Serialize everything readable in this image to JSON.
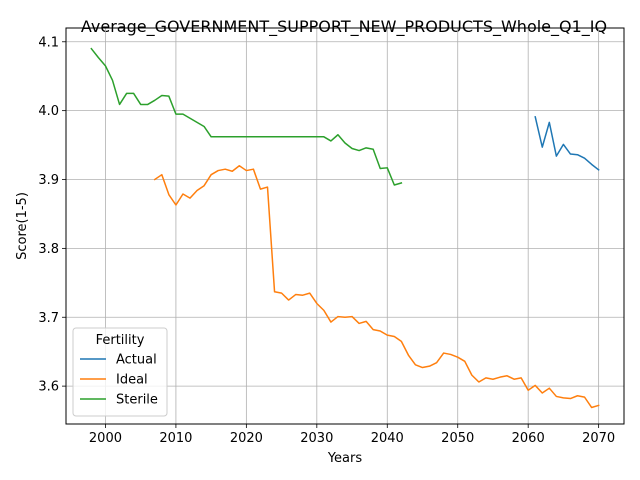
{
  "chart_data": {
    "type": "line",
    "title": "Average_GOVERNMENT_SUPPORT_NEW_PRODUCTS_Whole_Q1_IQ",
    "xlabel": "Years",
    "ylabel": "Score(1-5)",
    "xlim": [
      1994.4,
      2073.6
    ],
    "ylim": [
      3.545,
      4.12
    ],
    "xticks": [
      2000,
      2010,
      2020,
      2030,
      2040,
      2050,
      2060,
      2070
    ],
    "yticks": [
      3.6,
      3.7,
      3.8,
      3.9,
      4.0,
      4.1
    ],
    "xtick_labels": [
      "2000",
      "2010",
      "2020",
      "2030",
      "2040",
      "2050",
      "2060",
      "2070"
    ],
    "ytick_labels": [
      "3.6",
      "3.7",
      "3.8",
      "3.9",
      "4.0",
      "4.1"
    ],
    "grid": true,
    "legend": {
      "title": "Fertility",
      "placement": "lower-left"
    },
    "series": [
      {
        "name": "Actual",
        "color": "#1f77b4",
        "x": [
          2061,
          2062,
          2063,
          2064,
          2065,
          2066,
          2067,
          2068,
          2069,
          2070
        ],
        "y": [
          3.991,
          3.947,
          3.983,
          3.934,
          3.951,
          3.937,
          3.936,
          3.931,
          3.922,
          3.914
        ]
      },
      {
        "name": "Ideal",
        "color": "#ff7f0e",
        "x": [
          2007,
          2008,
          2009,
          2010,
          2011,
          2012,
          2013,
          2014,
          2015,
          2016,
          2017,
          2018,
          2019,
          2020,
          2021,
          2022,
          2023,
          2024,
          2025,
          2026,
          2027,
          2028,
          2029,
          2030,
          2031,
          2032,
          2033,
          2034,
          2035,
          2036,
          2037,
          2038,
          2039,
          2040,
          2041,
          2042,
          2043,
          2044,
          2045,
          2046,
          2047,
          2048,
          2049,
          2050,
          2051,
          2052,
          2053,
          2054,
          2055,
          2056,
          2057,
          2058,
          2059,
          2060,
          2061,
          2062,
          2063,
          2064,
          2065,
          2066,
          2067,
          2068,
          2069,
          2070
        ],
        "y": [
          3.9,
          3.907,
          3.878,
          3.863,
          3.879,
          3.873,
          3.884,
          3.891,
          3.907,
          3.913,
          3.915,
          3.912,
          3.92,
          3.913,
          3.915,
          3.886,
          3.889,
          3.737,
          3.735,
          3.725,
          3.733,
          3.732,
          3.735,
          3.72,
          3.71,
          3.693,
          3.701,
          3.7,
          3.701,
          3.691,
          3.694,
          3.682,
          3.68,
          3.674,
          3.672,
          3.665,
          3.645,
          3.631,
          3.627,
          3.629,
          3.634,
          3.648,
          3.646,
          3.642,
          3.636,
          3.616,
          3.606,
          3.612,
          3.61,
          3.613,
          3.615,
          3.61,
          3.612,
          3.594,
          3.601,
          3.59,
          3.597,
          3.585,
          3.583,
          3.582,
          3.586,
          3.584,
          3.569,
          3.572
        ]
      },
      {
        "name": "Sterile",
        "color": "#2ca02c",
        "x": [
          1998,
          1999,
          2000,
          2001,
          2002,
          2003,
          2004,
          2005,
          2006,
          2007,
          2008,
          2009,
          2010,
          2011,
          2012,
          2013,
          2014,
          2015,
          2016,
          2017,
          2018,
          2019,
          2020,
          2021,
          2022,
          2023,
          2024,
          2025,
          2026,
          2027,
          2028,
          2029,
          2030,
          2031,
          2032,
          2033,
          2034,
          2035,
          2036,
          2037,
          2038,
          2039,
          2040,
          2041,
          2042
        ],
        "y": [
          4.09,
          4.077,
          4.065,
          4.044,
          4.009,
          4.025,
          4.025,
          4.009,
          4.009,
          4.015,
          4.022,
          4.021,
          3.995,
          3.995,
          3.989,
          3.983,
          3.977,
          3.962,
          3.962,
          3.962,
          3.962,
          3.962,
          3.962,
          3.962,
          3.962,
          3.962,
          3.962,
          3.962,
          3.962,
          3.962,
          3.962,
          3.962,
          3.962,
          3.962,
          3.956,
          3.965,
          3.953,
          3.945,
          3.942,
          3.946,
          3.944,
          3.916,
          3.917,
          3.892,
          3.895
        ]
      }
    ]
  }
}
